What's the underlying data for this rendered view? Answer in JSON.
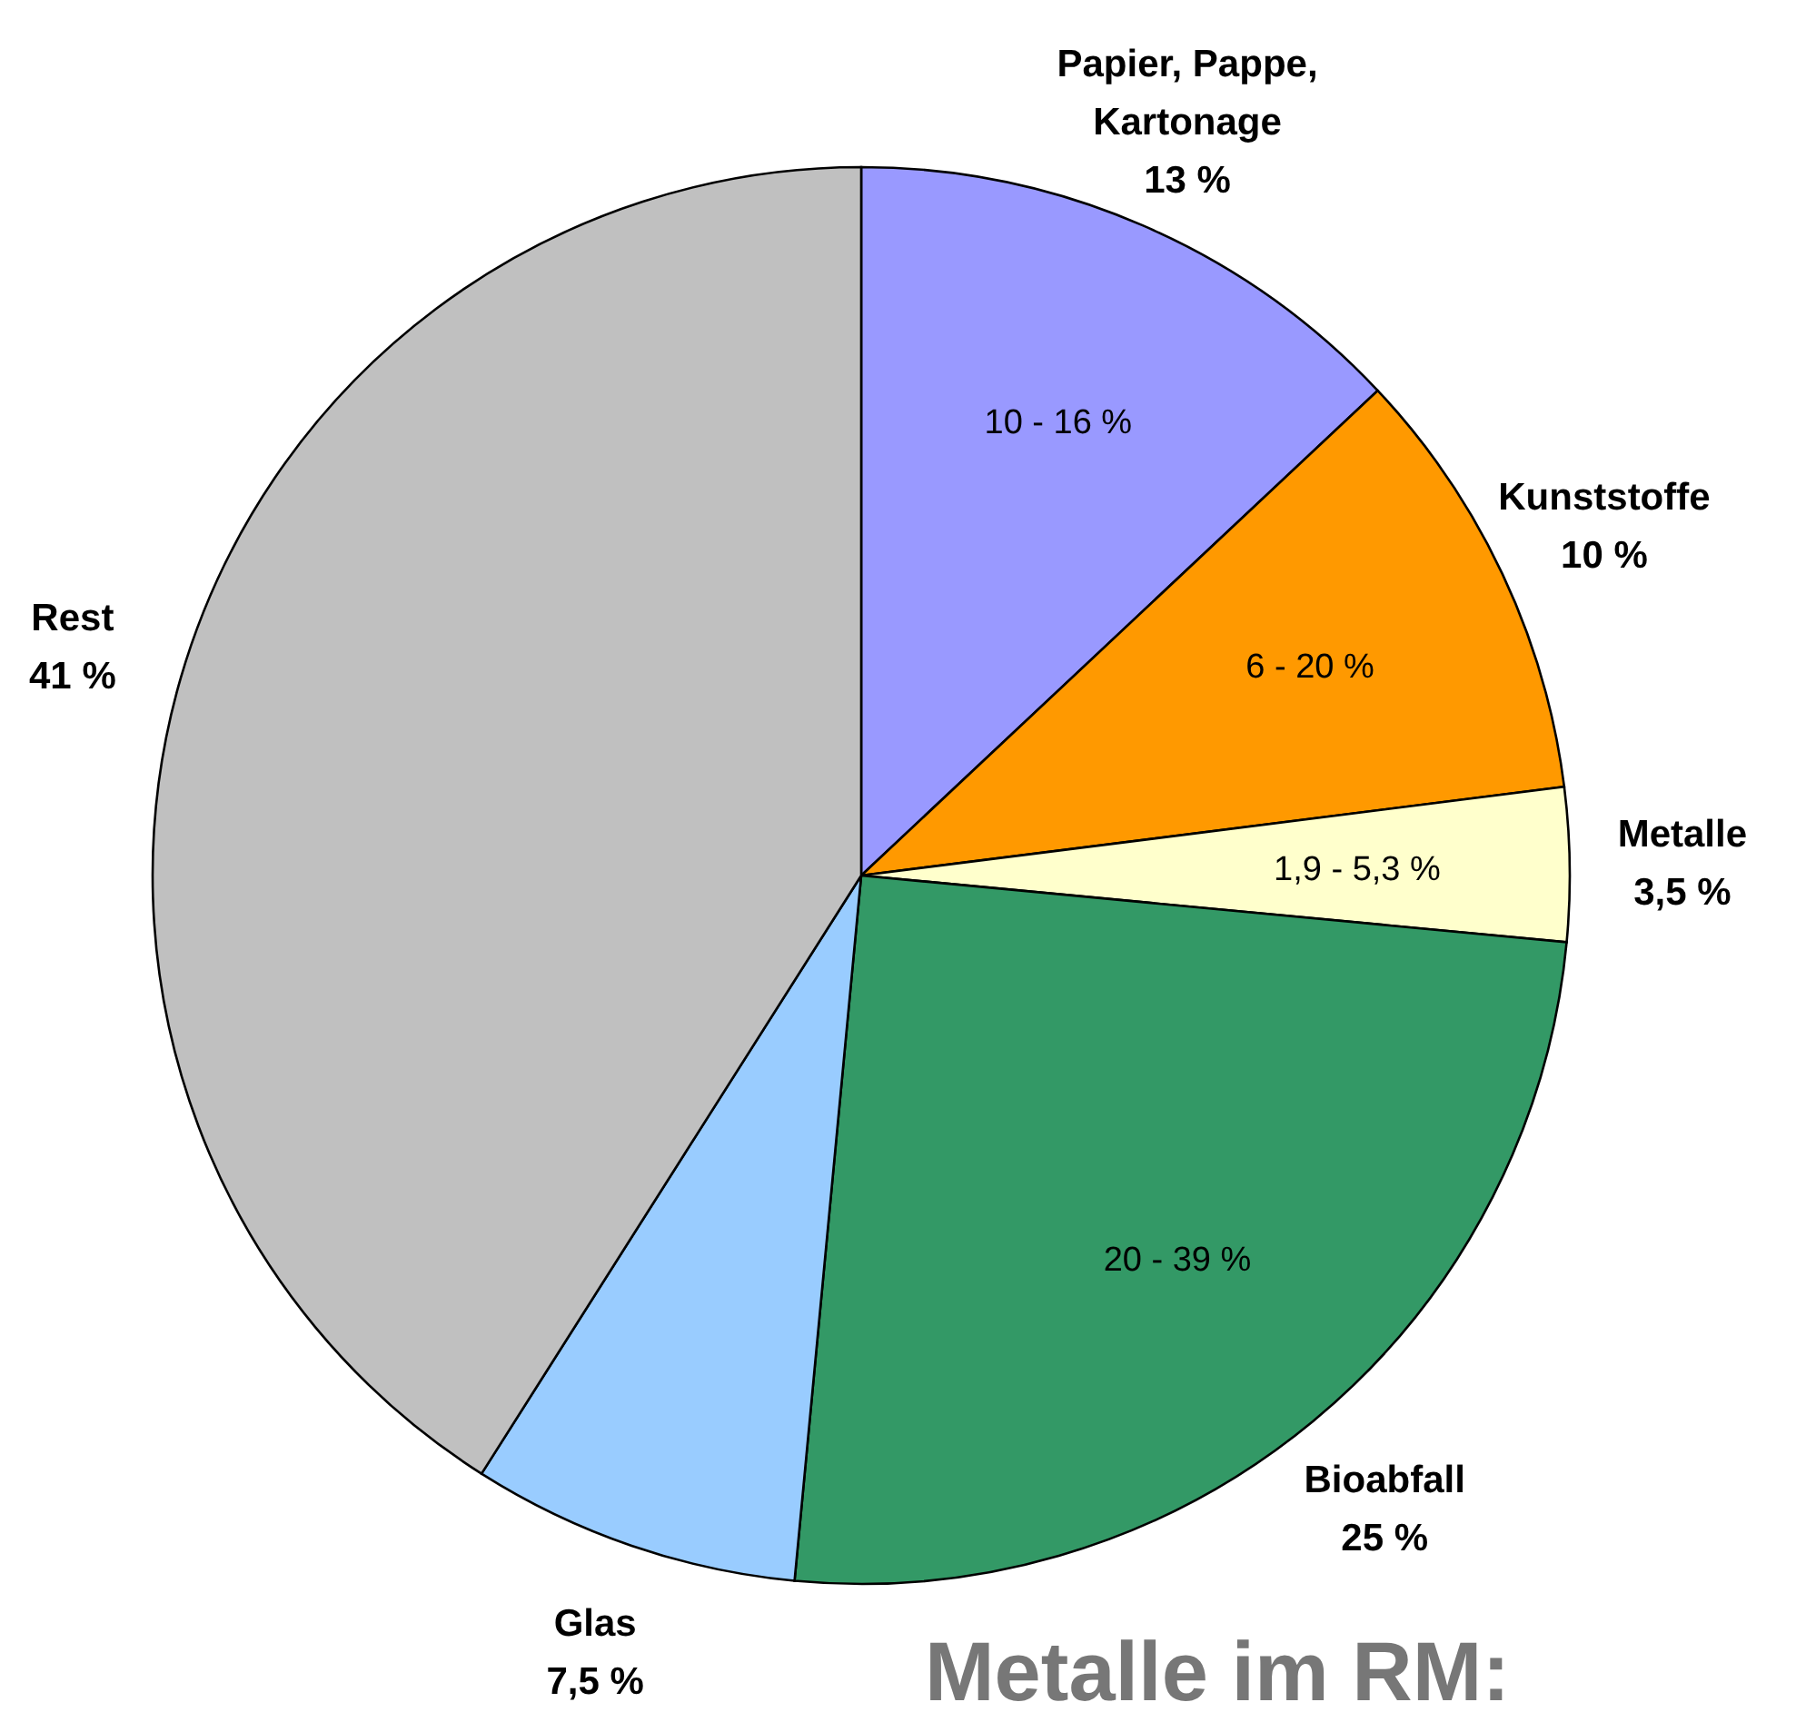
{
  "chart_data": {
    "type": "pie",
    "categories": [
      "Papier, Pappe, Kartonage",
      "Kunststoffe",
      "Metalle",
      "Bioabfall",
      "Glas",
      "Rest"
    ],
    "values": [
      13,
      10,
      3.5,
      25,
      7.5,
      41
    ],
    "colors": [
      "#9999ff",
      "#ff9900",
      "#ffffcc",
      "#339966",
      "#99ccff",
      "#c0c0c0"
    ],
    "value_labels": [
      "13 %",
      "10 %",
      "3,5 %",
      "25 %",
      "7,5 %",
      "41 %"
    ],
    "annotations": [
      {
        "text": "10 - 16 %",
        "x": "Papier, Pappe, Kartonage"
      },
      {
        "text": "6 - 20 %",
        "x": "Kunststoffe"
      },
      {
        "text": "1,9 - 5,3 %",
        "x": "Metalle"
      },
      {
        "text": "20 - 39 %",
        "x": "Bioabfall"
      },
      "Metalle im RM:"
    ]
  }
}
